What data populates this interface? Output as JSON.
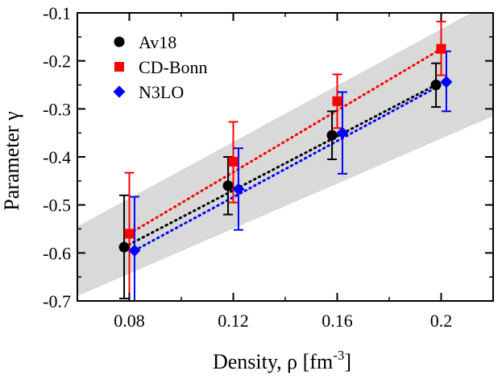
{
  "chart_data": {
    "type": "scatter",
    "title": "",
    "xlabel": "Density, ρ [fm",
    "xlabel_sup": "-3",
    "xlabel_suffix": "]",
    "ylabel": "Parameter γ",
    "xlim": [
      0.06,
      0.22
    ],
    "ylim": [
      -0.7,
      -0.1
    ],
    "xticks": [
      0.08,
      0.12,
      0.16,
      0.2
    ],
    "xtick_labels": [
      "0.08",
      "0.12",
      "0.16",
      "0.2"
    ],
    "yticks": [
      -0.7,
      -0.6,
      -0.5,
      -0.4,
      -0.3,
      -0.2,
      -0.1
    ],
    "ytick_labels": [
      "-0.7",
      "-0.6",
      "-0.5",
      "-0.4",
      "-0.3",
      "-0.2",
      "-0.1"
    ],
    "grid": false,
    "legend_position": "top-left",
    "band": {
      "color": "#d9d9d9",
      "lower": [
        [
          0.06,
          -0.69
        ],
        [
          0.22,
          -0.315
        ]
      ],
      "upper": [
        [
          0.06,
          -0.545
        ],
        [
          0.22,
          -0.075
        ]
      ]
    },
    "series": [
      {
        "name": "Av18",
        "color": "#000000",
        "marker": "circle",
        "x": [
          0.078,
          0.118,
          0.158,
          0.198
        ],
        "y": [
          -0.588,
          -0.46,
          -0.355,
          -0.25
        ],
        "yerr_low": [
          -0.695,
          -0.52,
          -0.405,
          -0.296
        ],
        "yerr_high": [
          -0.48,
          -0.4,
          -0.305,
          -0.205
        ],
        "fit": [
          [
            0.078,
            -0.588
          ],
          [
            0.198,
            -0.25
          ]
        ]
      },
      {
        "name": "CD-Bonn",
        "color": "#ff0000",
        "marker": "square",
        "x": [
          0.08,
          0.12,
          0.16,
          0.2
        ],
        "y": [
          -0.56,
          -0.41,
          -0.284,
          -0.175
        ],
        "yerr_low": [
          -0.7,
          -0.495,
          -0.34,
          -0.23
        ],
        "yerr_high": [
          -0.433,
          -0.327,
          -0.228,
          -0.118
        ],
        "fit": [
          [
            0.08,
            -0.56
          ],
          [
            0.2,
            -0.175
          ]
        ]
      },
      {
        "name": "N3LO",
        "color": "#0000ff",
        "marker": "diamond",
        "x": [
          0.082,
          0.122,
          0.162,
          0.202
        ],
        "y": [
          -0.595,
          -0.467,
          -0.35,
          -0.244
        ],
        "yerr_low": [
          -0.7,
          -0.552,
          -0.435,
          -0.305
        ],
        "yerr_high": [
          -0.483,
          -0.382,
          -0.265,
          -0.18
        ],
        "fit": [
          [
            0.082,
            -0.595
          ],
          [
            0.202,
            -0.244
          ]
        ]
      }
    ]
  }
}
